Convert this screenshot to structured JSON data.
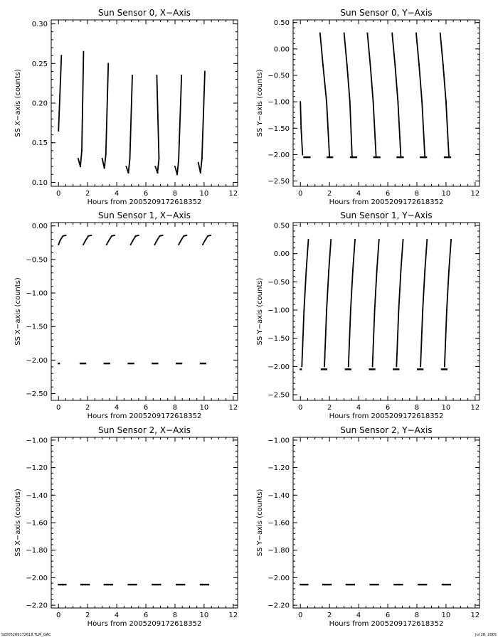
{
  "footer": {
    "left": "S2005209172618.TLM_GAC",
    "right": "Jul 28, 2005"
  },
  "chart_data": [
    {
      "type": "scatter",
      "title": "Sun Sensor 0, X−Axis",
      "xlabel": "Hours from 2005209172618352",
      "ylabel": "SS X−axis (counts)",
      "xlim": [
        -0.5,
        12.3
      ],
      "ylim": [
        0.095,
        0.305
      ],
      "xticks": [
        0,
        2,
        4,
        6,
        8,
        10,
        12
      ],
      "yticks": [
        0.1,
        0.15,
        0.2,
        0.25,
        0.3
      ],
      "ytick_decimals": 2,
      "grid": false,
      "series": [
        {
          "segments": [
            {
              "x": [
                0.0,
                0.2
              ],
              "y": [
                0.165,
                0.26
              ]
            },
            {
              "x": [
                1.35,
                1.5,
                1.6,
                1.72
              ],
              "y": [
                0.13,
                0.12,
                0.14,
                0.265
              ]
            },
            {
              "x": [
                3.0,
                3.15,
                3.25,
                3.42
              ],
              "y": [
                0.13,
                0.118,
                0.135,
                0.25
              ]
            },
            {
              "x": [
                4.65,
                4.8,
                4.9,
                5.07
              ],
              "y": [
                0.12,
                0.112,
                0.13,
                0.235
              ]
            },
            {
              "x": [
                6.65,
                6.8,
                6.9,
                6.75
              ],
              "y": [
                0.12,
                0.112,
                0.13,
                0.235
              ]
            },
            {
              "x": [
                8.0,
                8.15,
                8.25,
                8.45
              ],
              "y": [
                0.12,
                0.11,
                0.128,
                0.235
              ]
            },
            {
              "x": [
                9.6,
                9.75,
                9.85,
                10.05
              ],
              "y": [
                0.125,
                0.112,
                0.13,
                0.24
              ]
            }
          ]
        }
      ]
    },
    {
      "type": "scatter",
      "title": "Sun Sensor 0, Y−Axis",
      "xlabel": "Hours from 2005209172618352",
      "ylabel": "SS Y−axis (counts)",
      "xlim": [
        -0.5,
        12.3
      ],
      "ylim": [
        -2.6,
        0.55
      ],
      "xticks": [
        0,
        2,
        4,
        6,
        8,
        10,
        12
      ],
      "yticks": [
        -2.5,
        -2.0,
        -1.5,
        -1.0,
        -0.5,
        0.0,
        0.5
      ],
      "ytick_decimals": 2,
      "grid": false,
      "series": [
        {
          "segments": [
            {
              "x": [
                0.0,
                0.05,
                0.15
              ],
              "y": [
                -1.0,
                -1.5,
                -2.0
              ]
            },
            {
              "x": [
                1.35,
                1.55,
                1.8,
                2.0
              ],
              "y": [
                0.3,
                -0.3,
                -1.0,
                -2.05
              ]
            },
            {
              "x": [
                3.0,
                3.2,
                3.4,
                3.55
              ],
              "y": [
                0.3,
                -0.3,
                -1.0,
                -2.05
              ]
            },
            {
              "x": [
                4.6,
                4.8,
                5.0,
                5.2
              ],
              "y": [
                0.3,
                -0.3,
                -1.0,
                -2.05
              ]
            },
            {
              "x": [
                6.3,
                6.5,
                6.7,
                6.9
              ],
              "y": [
                0.3,
                -0.3,
                -1.0,
                -2.05
              ]
            },
            {
              "x": [
                7.95,
                8.15,
                8.35,
                8.55
              ],
              "y": [
                0.3,
                -0.3,
                -1.0,
                -2.05
              ]
            },
            {
              "x": [
                9.6,
                9.8,
                10.0,
                10.2
              ],
              "y": [
                0.3,
                -0.3,
                -1.0,
                -2.05
              ]
            }
          ]
        },
        {
          "hlines": [
            {
              "x": [
                0.2,
                0.7
              ],
              "y": -2.05
            },
            {
              "x": [
                1.8,
                2.25
              ],
              "y": -2.05
            },
            {
              "x": [
                3.4,
                3.9
              ],
              "y": -2.05
            },
            {
              "x": [
                5.0,
                5.5
              ],
              "y": -2.05
            },
            {
              "x": [
                6.6,
                7.1
              ],
              "y": -2.05
            },
            {
              "x": [
                8.2,
                8.7
              ],
              "y": -2.05
            },
            {
              "x": [
                9.85,
                10.35
              ],
              "y": -2.05
            }
          ]
        }
      ]
    },
    {
      "type": "scatter",
      "title": "Sun Sensor 1, X−Axis",
      "xlabel": "Hours from 2005209172618352",
      "ylabel": "SS X−axis (counts)",
      "xlim": [
        -0.5,
        12.3
      ],
      "ylim": [
        -2.6,
        0.05
      ],
      "xticks": [
        0,
        2,
        4,
        6,
        8,
        10,
        12
      ],
      "yticks": [
        -2.5,
        -2.0,
        -1.5,
        -1.0,
        -0.5,
        0.0
      ],
      "ytick_decimals": 2,
      "grid": false,
      "series": [
        {
          "segments": [
            {
              "x": [
                0.0,
                0.1,
                0.3,
                0.5
              ],
              "y": [
                -0.28,
                -0.22,
                -0.15,
                -0.14
              ]
            },
            {
              "x": [
                1.7,
                1.85,
                2.05,
                2.25
              ],
              "y": [
                -0.28,
                -0.22,
                -0.15,
                -0.14
              ]
            },
            {
              "x": [
                3.3,
                3.45,
                3.65,
                3.85
              ],
              "y": [
                -0.28,
                -0.22,
                -0.15,
                -0.14
              ]
            },
            {
              "x": [
                4.95,
                5.1,
                5.3,
                5.5
              ],
              "y": [
                -0.28,
                -0.22,
                -0.15,
                -0.14
              ]
            },
            {
              "x": [
                6.6,
                6.75,
                6.95,
                7.15
              ],
              "y": [
                -0.28,
                -0.22,
                -0.15,
                -0.14
              ]
            },
            {
              "x": [
                8.25,
                8.4,
                8.6,
                8.8
              ],
              "y": [
                -0.28,
                -0.22,
                -0.15,
                -0.14
              ]
            },
            {
              "x": [
                9.9,
                10.05,
                10.25,
                10.45
              ],
              "y": [
                -0.28,
                -0.22,
                -0.15,
                -0.14
              ]
            }
          ]
        },
        {
          "hlines": [
            {
              "x": [
                -0.05,
                0.1
              ],
              "y": -2.05
            },
            {
              "x": [
                1.45,
                1.9
              ],
              "y": -2.05
            },
            {
              "x": [
                3.1,
                3.55
              ],
              "y": -2.05
            },
            {
              "x": [
                4.75,
                5.2
              ],
              "y": -2.05
            },
            {
              "x": [
                6.4,
                6.85
              ],
              "y": -2.05
            },
            {
              "x": [
                8.05,
                8.5
              ],
              "y": -2.05
            },
            {
              "x": [
                9.7,
                10.15
              ],
              "y": -2.05
            }
          ]
        }
      ]
    },
    {
      "type": "scatter",
      "title": "Sun Sensor 1, Y−Axis",
      "xlabel": "Hours from 2005209172618352",
      "ylabel": "SS Y−axis (counts)",
      "xlim": [
        -0.5,
        12.3
      ],
      "ylim": [
        -2.6,
        0.55
      ],
      "xticks": [
        0,
        2,
        4,
        6,
        8,
        10,
        12
      ],
      "yticks": [
        -2.5,
        -2.0,
        -1.5,
        -1.0,
        -0.5,
        0.0,
        0.5
      ],
      "ytick_decimals": 2,
      "grid": false,
      "series": [
        {
          "segments": [
            {
              "x": [
                0.1,
                0.25,
                0.4,
                0.55
              ],
              "y": [
                -2.0,
                -1.0,
                -0.3,
                0.25
              ]
            },
            {
              "x": [
                1.65,
                1.8,
                1.95,
                2.1
              ],
              "y": [
                -2.0,
                -1.0,
                -0.3,
                0.25
              ]
            },
            {
              "x": [
                3.3,
                3.45,
                3.6,
                3.75
              ],
              "y": [
                -2.0,
                -1.0,
                -0.3,
                0.25
              ]
            },
            {
              "x": [
                4.95,
                5.1,
                5.25,
                5.4
              ],
              "y": [
                -2.0,
                -1.0,
                -0.3,
                0.25
              ]
            },
            {
              "x": [
                6.6,
                6.75,
                6.9,
                7.05
              ],
              "y": [
                -2.0,
                -1.0,
                -0.3,
                0.25
              ]
            },
            {
              "x": [
                8.25,
                8.4,
                8.55,
                8.7
              ],
              "y": [
                -2.0,
                -1.0,
                -0.3,
                0.25
              ]
            },
            {
              "x": [
                9.9,
                10.05,
                10.2,
                10.35
              ],
              "y": [
                -2.0,
                -1.0,
                -0.3,
                0.25
              ]
            }
          ]
        },
        {
          "hlines": [
            {
              "x": [
                -0.05,
                0.1
              ],
              "y": -2.05
            },
            {
              "x": [
                1.4,
                1.85
              ],
              "y": -2.05
            },
            {
              "x": [
                3.05,
                3.5
              ],
              "y": -2.05
            },
            {
              "x": [
                4.7,
                5.15
              ],
              "y": -2.05
            },
            {
              "x": [
                6.35,
                6.8
              ],
              "y": -2.05
            },
            {
              "x": [
                8.0,
                8.45
              ],
              "y": -2.05
            },
            {
              "x": [
                9.65,
                10.1
              ],
              "y": -2.05
            }
          ]
        }
      ]
    },
    {
      "type": "scatter",
      "title": "Sun Sensor 2, X−Axis",
      "xlabel": "Hours from 2005209172618352",
      "ylabel": "SS X−axis (counts)",
      "xlim": [
        -0.5,
        12.3
      ],
      "ylim": [
        -2.22,
        -0.98
      ],
      "xticks": [
        0,
        2,
        4,
        6,
        8,
        10,
        12
      ],
      "yticks": [
        -2.2,
        -2.0,
        -1.8,
        -1.6,
        -1.4,
        -1.2,
        -1.0
      ],
      "ytick_decimals": 2,
      "grid": false,
      "series": [
        {
          "hlines": [
            {
              "x": [
                -0.05,
                0.55
              ],
              "y": -2.05
            },
            {
              "x": [
                1.5,
                2.15
              ],
              "y": -2.05
            },
            {
              "x": [
                3.1,
                3.75
              ],
              "y": -2.05
            },
            {
              "x": [
                4.75,
                5.4
              ],
              "y": -2.05
            },
            {
              "x": [
                6.4,
                7.05
              ],
              "y": -2.05
            },
            {
              "x": [
                8.05,
                8.7
              ],
              "y": -2.05
            },
            {
              "x": [
                9.7,
                10.35
              ],
              "y": -2.05
            }
          ]
        }
      ]
    },
    {
      "type": "scatter",
      "title": "Sun Sensor 2, Y−Axis",
      "xlabel": "Hours from 2005209172618352",
      "ylabel": "SS Y−axis (counts)",
      "xlim": [
        -0.5,
        12.3
      ],
      "ylim": [
        -2.22,
        -0.98
      ],
      "xticks": [
        0,
        2,
        4,
        6,
        8,
        10,
        12
      ],
      "yticks": [
        -2.2,
        -2.0,
        -1.8,
        -1.6,
        -1.4,
        -1.2,
        -1.0
      ],
      "ytick_decimals": 2,
      "grid": false,
      "series": [
        {
          "hlines": [
            {
              "x": [
                -0.05,
                0.55
              ],
              "y": -2.05
            },
            {
              "x": [
                1.5,
                2.15
              ],
              "y": -2.05
            },
            {
              "x": [
                3.1,
                3.75
              ],
              "y": -2.05
            },
            {
              "x": [
                4.75,
                5.4
              ],
              "y": -2.05
            },
            {
              "x": [
                6.4,
                7.05
              ],
              "y": -2.05
            },
            {
              "x": [
                8.05,
                8.7
              ],
              "y": -2.05
            },
            {
              "x": [
                9.7,
                10.35
              ],
              "y": -2.05
            }
          ]
        }
      ]
    }
  ]
}
